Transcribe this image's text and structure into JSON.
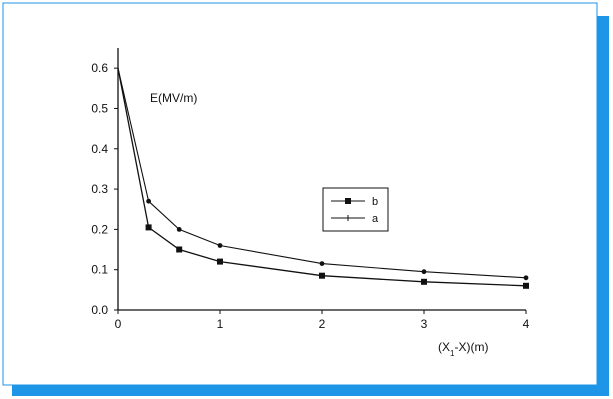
{
  "chart_data": {
    "type": "line",
    "title": "",
    "xlabel": "(X1-X)(m)",
    "ylabel": "E(MV/m)",
    "xlim": [
      0,
      4
    ],
    "ylim": [
      0,
      0.65
    ],
    "xticks": [
      "0",
      "1",
      "2",
      "3",
      "4"
    ],
    "yticks": [
      "0.0",
      "0.1",
      "0.2",
      "0.3",
      "0.4",
      "0.5",
      "0.6"
    ],
    "grid": false,
    "legend_position": "center-right",
    "series": [
      {
        "name": "b",
        "marker": "square",
        "x": [
          0,
          0.3,
          0.6,
          1,
          2,
          3,
          4
        ],
        "values": [
          0.6,
          0.205,
          0.15,
          0.12,
          0.085,
          0.07,
          0.06
        ]
      },
      {
        "name": "a",
        "marker": "plus",
        "x": [
          0,
          0.3,
          0.6,
          1,
          2,
          3,
          4
        ],
        "values": [
          0.6,
          0.27,
          0.2,
          0.16,
          0.115,
          0.095,
          0.08
        ]
      }
    ],
    "colors": {
      "background": "#ffffff",
      "plot_line": "#111111",
      "shadow": "#1f95e8"
    }
  }
}
